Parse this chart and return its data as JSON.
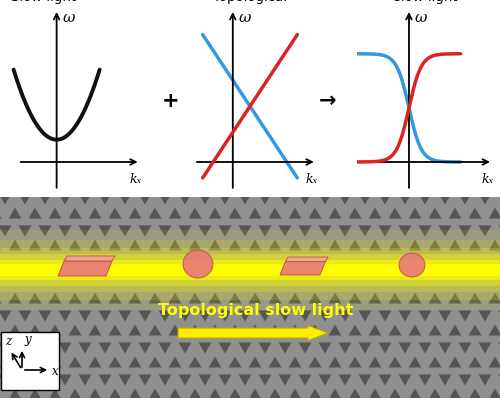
{
  "bg_color": "#ffffff",
  "label1": "Slow light",
  "label2": "Topological",
  "label3": "Topological\nslow light",
  "plus_sign": "+",
  "arrow_sign": "→",
  "omega_label": "ω",
  "kx_label": "kₓ",
  "black_curve_color": "#111111",
  "red_line_color": "#dd2222",
  "blue_line_color": "#3399dd",
  "photonic_bg_color": "#909090",
  "triangle_color": "#555555",
  "channel_yellow": "#ffff00",
  "particle_color": "#e87878",
  "particle_edge": "#c05050",
  "text_yellow": "#ffff00",
  "axis_color": "#000000",
  "coord_box_color": "#ffffff"
}
